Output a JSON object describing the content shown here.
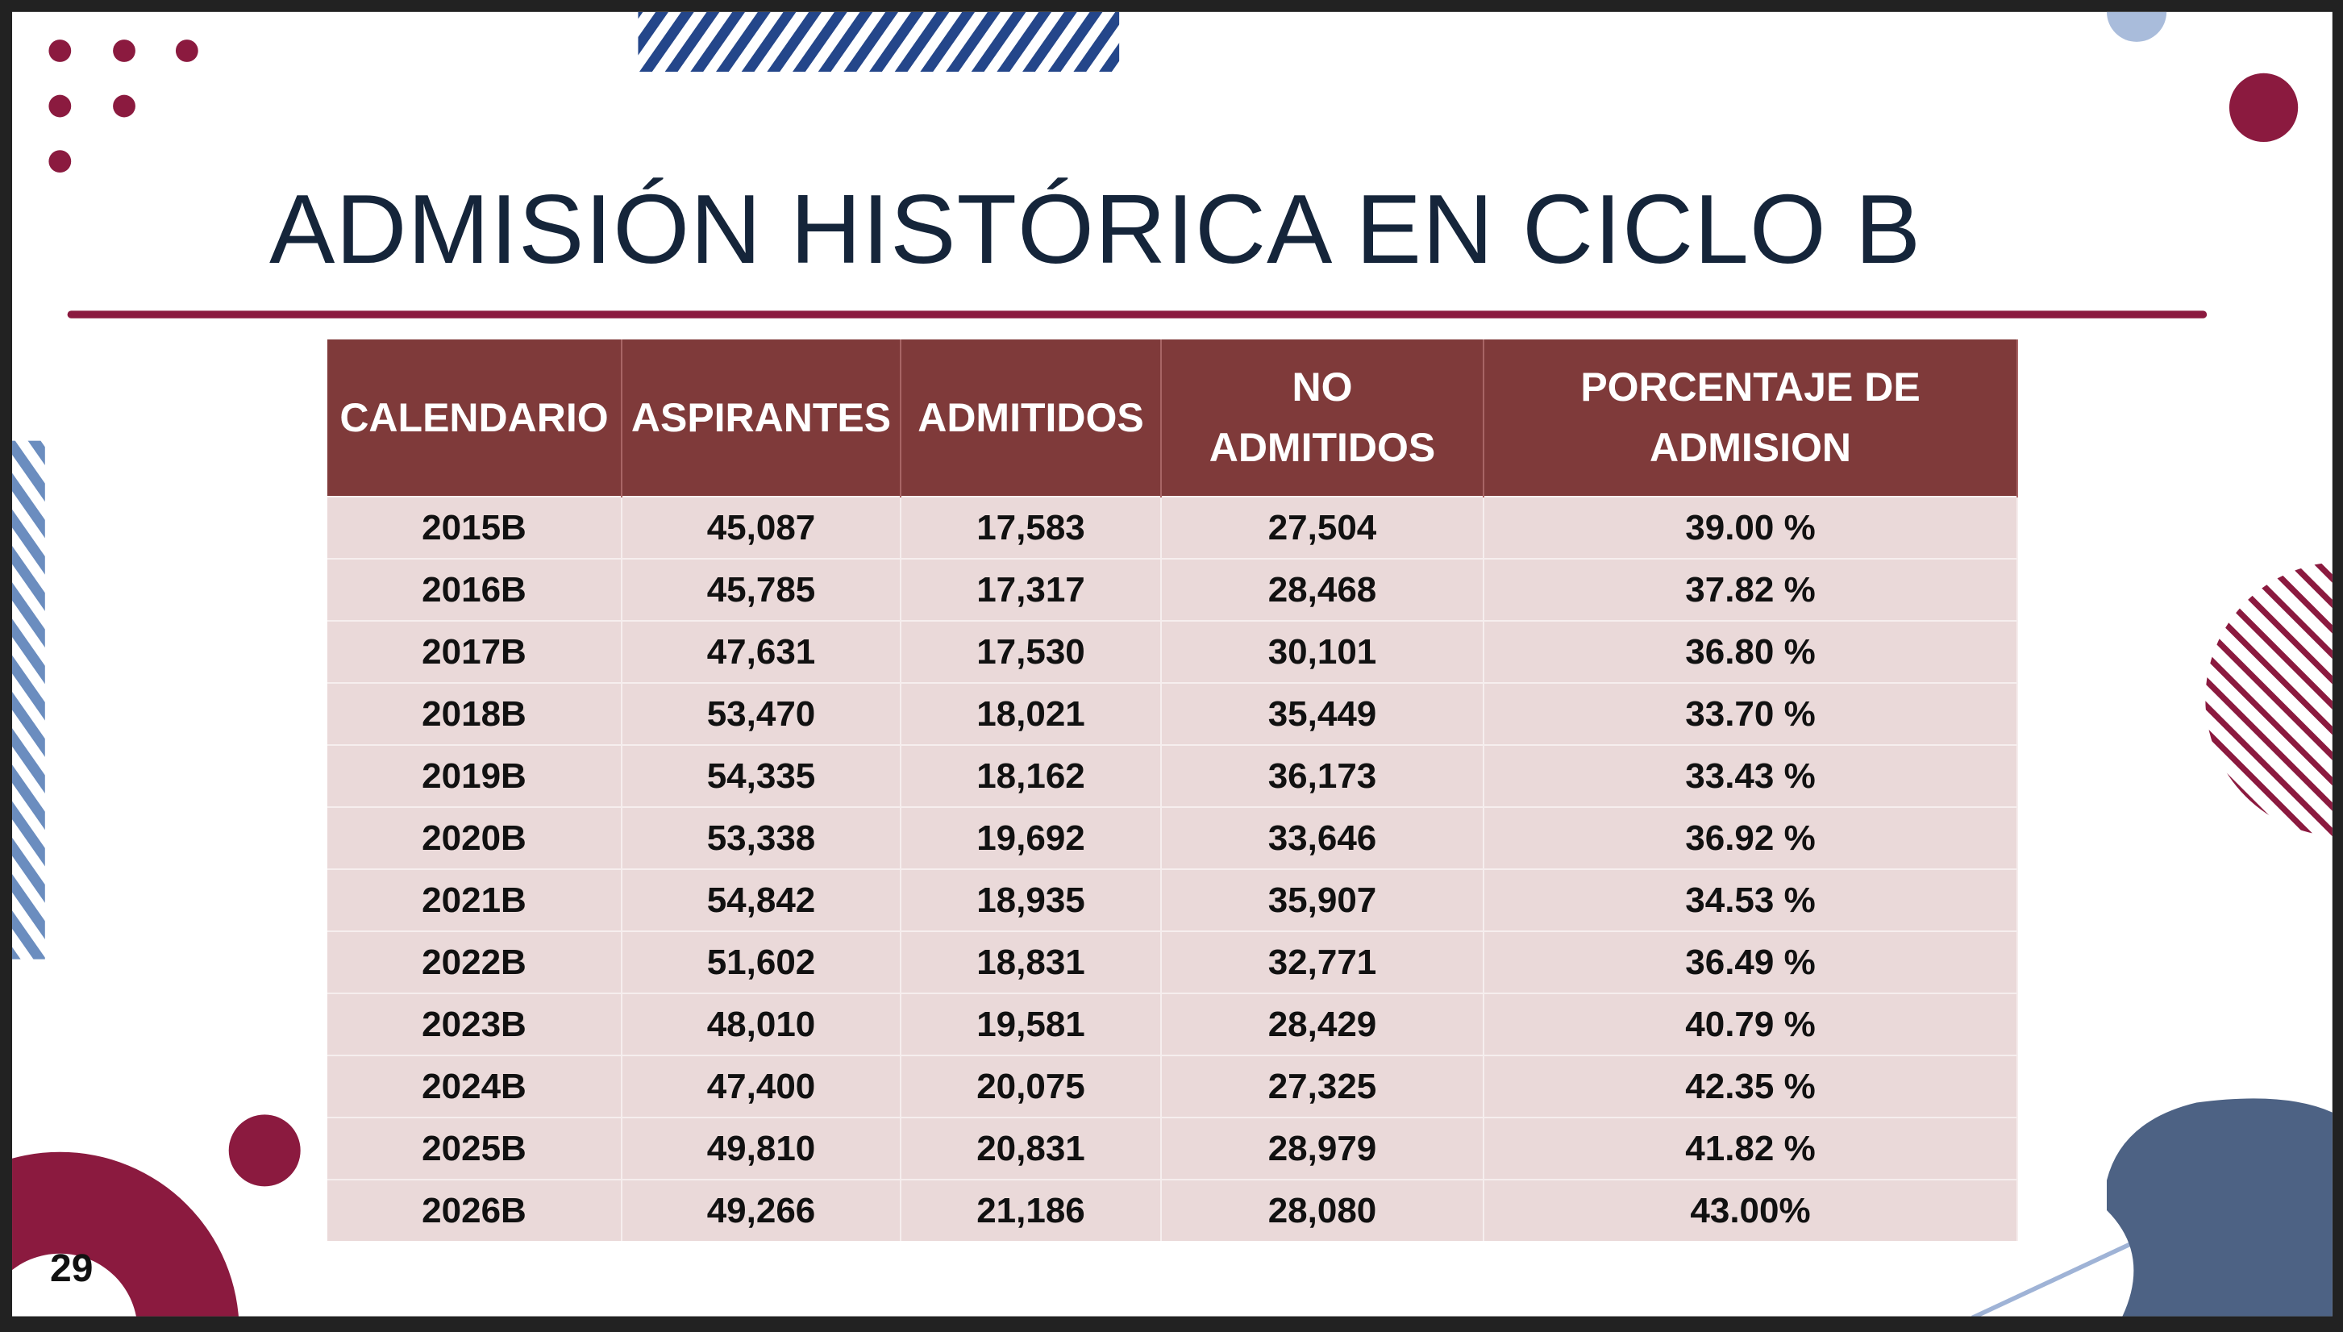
{
  "title": "ADMISIÓN HISTÓRICA EN CICLO B",
  "page_number": "29",
  "table": {
    "header": [
      "CALENDARIO",
      "ASPIRANTES",
      "ADMITIDOS",
      "NO ADMITIDOS",
      "PORCENTAJE DE ADMISION"
    ],
    "rows": [
      [
        "2015B",
        "45,087",
        "17,583",
        "27,504",
        "39.00 %"
      ],
      [
        "2016B",
        "45,785",
        "17,317",
        "28,468",
        "37.82 %"
      ],
      [
        "2017B",
        "47,631",
        "17,530",
        "30,101",
        "36.80 %"
      ],
      [
        "2018B",
        "53,470",
        "18,021",
        "35,449",
        "33.70 %"
      ],
      [
        "2019B",
        "54,335",
        "18,162",
        "36,173",
        "33.43 %"
      ],
      [
        "2020B",
        "53,338",
        "19,692",
        "33,646",
        "36.92 %"
      ],
      [
        "2021B",
        "54,842",
        "18,935",
        "35,907",
        "34.53 %"
      ],
      [
        "2022B",
        "51,602",
        "18,831",
        "32,771",
        "36.49 %"
      ],
      [
        "2023B",
        "48,010",
        "19,581",
        "28,429",
        "40.79 %"
      ],
      [
        "2024B",
        "47,400",
        "20,075",
        "27,325",
        "42.35 %"
      ],
      [
        "2025B",
        "49,810",
        "20,831",
        "28,979",
        "41.82 %"
      ],
      [
        "2026B",
        "49,266",
        "21,186",
        "28,080",
        "43.00%"
      ]
    ]
  }
}
